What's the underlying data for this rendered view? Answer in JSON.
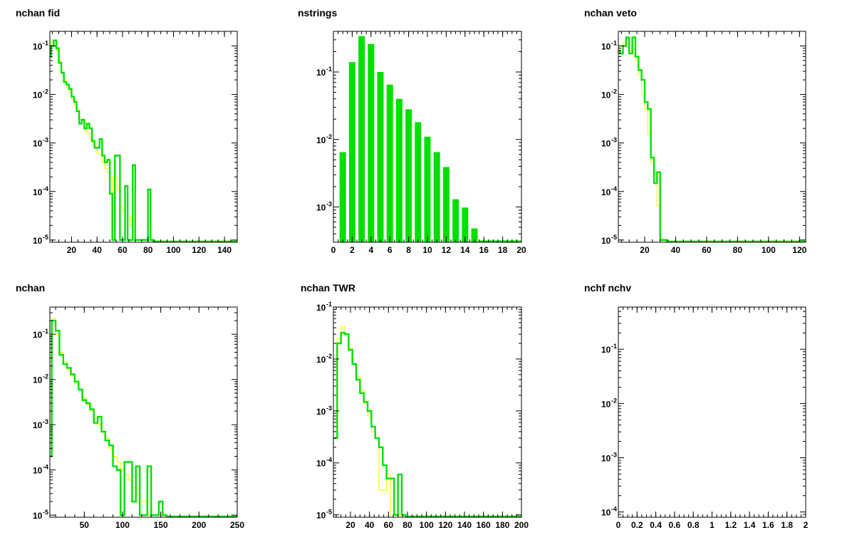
{
  "colors": {
    "data": "#00e000",
    "reference": "#ffff00",
    "frame": "#000000"
  },
  "chart_data": [
    {
      "id": "fid",
      "type": "histogram",
      "title": "nchan fid",
      "xlim": [
        3,
        150
      ],
      "ylim": [
        9e-06,
        0.2
      ],
      "yscale": "log",
      "xticks": [
        20,
        40,
        60,
        80,
        100,
        120,
        140
      ],
      "yticks": [
        {
          "exp": -1
        },
        {
          "exp": -2
        },
        {
          "exp": -3
        },
        {
          "exp": -4
        },
        {
          "exp": -5
        }
      ],
      "series": [
        {
          "role": "data",
          "x": [
            3,
            5,
            7,
            9,
            11,
            13,
            15,
            17,
            19,
            21,
            23,
            25,
            27,
            29,
            31,
            33,
            35,
            37,
            39,
            41,
            43,
            45,
            47,
            49,
            51,
            53,
            55,
            57,
            59,
            61,
            63,
            65,
            67,
            69,
            71,
            73,
            75,
            77,
            79,
            81,
            83
          ],
          "values": [
            0.06,
            0.1,
            0.13,
            0.09,
            0.045,
            0.028,
            0.018,
            0.016,
            0.013,
            0.009,
            0.007,
            0.0045,
            0.0025,
            0.003,
            0.002,
            0.0025,
            0.002,
            0.0011,
            0.0008,
            0.0008,
            0.0012,
            0.00055,
            0.0004,
            0.00045,
            9e-05,
            1e-05,
            0.00055,
            0.00055,
            1e-05,
            1e-05,
            0.00013,
            1e-05,
            1e-05,
            0.00035,
            1e-05,
            1e-05,
            1e-05,
            1e-05,
            1e-05,
            0.00011,
            1e-05
          ]
        },
        {
          "role": "reference",
          "x": [
            3,
            5,
            7,
            9,
            11,
            13,
            15,
            17,
            19,
            21,
            23,
            25,
            27,
            29,
            31,
            33,
            35,
            37,
            39,
            41,
            43,
            45,
            47,
            49,
            51,
            53,
            55,
            57,
            59,
            61,
            63,
            65,
            67,
            69,
            71,
            73,
            75,
            77,
            79,
            81,
            83
          ],
          "values": [
            0.075,
            0.12,
            0.1,
            0.08,
            0.05,
            0.03,
            0.02,
            0.014,
            0.011,
            0.008,
            0.006,
            0.005,
            0.003,
            0.0028,
            0.0018,
            0.0016,
            0.0012,
            0.001,
            0.0009,
            0.0006,
            0.0006,
            0.0004,
            0.0003,
            0.00025,
            0.0002,
            5e-05,
            0.0002,
            0.0001,
            5e-05,
            4e-05,
            6e-05,
            3e-05,
            2e-05,
            1e-05,
            1e-05,
            1e-05,
            1e-05,
            1e-05,
            1e-05,
            2e-05,
            1e-05
          ]
        }
      ]
    },
    {
      "id": "strings",
      "type": "bar",
      "title": "nstrings",
      "xlim": [
        0,
        20
      ],
      "ylim": [
        0.0003,
        0.4
      ],
      "yscale": "log",
      "xticks": [
        0,
        2,
        4,
        6,
        8,
        10,
        12,
        14,
        16,
        18,
        20
      ],
      "yticks": [
        {
          "exp": -1
        },
        {
          "exp": -2
        },
        {
          "exp": -3
        }
      ],
      "series": [
        {
          "role": "data",
          "x": [
            1,
            2,
            3,
            4,
            5,
            6,
            7,
            8,
            9,
            10,
            11,
            12,
            13,
            14,
            15
          ],
          "values": [
            0.0065,
            0.14,
            0.34,
            0.26,
            0.1,
            0.065,
            0.04,
            0.028,
            0.018,
            0.011,
            0.0065,
            0.0039,
            0.0013,
            0.00098,
            0.00048
          ]
        }
      ]
    },
    {
      "id": "veto",
      "type": "histogram",
      "title": "nchan veto",
      "xlim": [
        3,
        124
      ],
      "ylim": [
        9e-06,
        0.2
      ],
      "yscale": "log",
      "xticks": [
        20,
        40,
        60,
        80,
        100,
        120
      ],
      "yticks": [
        {
          "exp": -1
        },
        {
          "exp": -2
        },
        {
          "exp": -3
        },
        {
          "exp": -4
        },
        {
          "exp": -5
        }
      ],
      "series": [
        {
          "role": "data",
          "x": [
            3,
            5,
            7,
            9,
            11,
            13,
            15,
            17,
            19,
            21,
            23,
            25,
            27,
            29,
            31,
            33
          ],
          "values": [
            0.08,
            0.07,
            0.1,
            0.15,
            0.07,
            0.15,
            0.06,
            0.032,
            0.02,
            0.007,
            0.005,
            0.0005,
            0.00015,
            0.00025,
            1e-05,
            1e-05
          ]
        },
        {
          "role": "reference",
          "x": [
            3,
            5,
            7,
            9,
            11,
            13,
            15,
            17,
            19,
            21,
            23,
            25,
            27,
            29,
            31,
            33
          ],
          "values": [
            0.09,
            0.1,
            0.12,
            0.11,
            0.08,
            0.07,
            0.05,
            0.025,
            0.01,
            0.005,
            0.0015,
            0.0004,
            0.00025,
            5e-05,
            1e-05,
            1e-05
          ]
        }
      ]
    },
    {
      "id": "nchan",
      "type": "histogram",
      "title": "nchan",
      "xlim": [
        5,
        250
      ],
      "ylim": [
        9e-06,
        0.4
      ],
      "yscale": "log",
      "xticks": [
        50,
        100,
        150,
        200,
        250
      ],
      "yticks": [
        {
          "exp": -1
        },
        {
          "exp": -2
        },
        {
          "exp": -3
        },
        {
          "exp": -4
        },
        {
          "exp": -5
        }
      ],
      "series": [
        {
          "role": "data",
          "x": [
            5,
            10,
            15,
            20,
            25,
            30,
            35,
            40,
            45,
            50,
            55,
            60,
            65,
            70,
            75,
            80,
            85,
            90,
            95,
            100,
            105,
            110,
            115,
            120,
            125,
            130,
            135,
            140,
            145,
            150,
            155
          ],
          "values": [
            0.0002,
            0.2,
            0.12,
            0.035,
            0.022,
            0.018,
            0.013,
            0.009,
            0.006,
            0.0035,
            0.003,
            0.0022,
            0.0011,
            0.0015,
            0.0007,
            0.00045,
            0.00035,
            0.00012,
            0.0001,
            1e-05,
            0.00015,
            0.00015,
            2e-05,
            0.00012,
            1e-05,
            1e-05,
            0.00012,
            1e-05,
            1e-05,
            2e-05,
            1e-05
          ]
        },
        {
          "role": "reference",
          "x": [
            5,
            10,
            15,
            20,
            25,
            30,
            35,
            40,
            45,
            50,
            55,
            60,
            65,
            70,
            75,
            80,
            85,
            90,
            95,
            100,
            105,
            110,
            115,
            120,
            125,
            130,
            135,
            140,
            145,
            150,
            155
          ],
          "values": [
            0.0003,
            0.22,
            0.1,
            0.04,
            0.025,
            0.016,
            0.012,
            0.008,
            0.006,
            0.004,
            0.0028,
            0.002,
            0.0014,
            0.001,
            0.0007,
            0.0005,
            0.0003,
            0.0002,
            0.00015,
            0.0001,
            8e-05,
            6e-05,
            4e-05,
            3e-05,
            2e-05,
            2e-05,
            1e-05,
            1e-05,
            1e-05,
            1e-05,
            1e-05
          ]
        }
      ]
    },
    {
      "id": "twr",
      "type": "histogram",
      "title": "nchan TWR",
      "xlim": [
        2,
        200
      ],
      "ylim": [
        9e-06,
        0.1
      ],
      "yscale": "log",
      "xticks": [
        20,
        40,
        60,
        80,
        100,
        120,
        140,
        160,
        180,
        200
      ],
      "yticks": [
        {
          "exp": -1
        },
        {
          "exp": -2
        },
        {
          "exp": -3
        },
        {
          "exp": -4
        },
        {
          "exp": -5
        }
      ],
      "series": [
        {
          "role": "data",
          "x": [
            4,
            8,
            12,
            16,
            20,
            24,
            28,
            32,
            36,
            40,
            44,
            48,
            52,
            56,
            60,
            64,
            68,
            72,
            76
          ],
          "values": [
            0.0003,
            0.02,
            0.032,
            0.03,
            0.015,
            0.008,
            0.004,
            0.0022,
            0.0015,
            0.001,
            0.0005,
            0.0003,
            0.0002,
            9e-05,
            5e-05,
            5e-05,
            1e-05,
            6e-05,
            1e-05
          ]
        },
        {
          "role": "reference",
          "x": [
            4,
            8,
            12,
            16,
            20,
            24,
            28,
            32,
            36,
            40,
            44,
            48,
            52,
            56,
            60,
            64,
            68,
            72,
            76
          ],
          "values": [
            0.0004,
            0.025,
            0.042,
            0.03,
            0.016,
            0.008,
            0.0045,
            0.0025,
            0.0014,
            0.0008,
            0.0004,
            0.0003,
            3e-05,
            3e-05,
            6e-05,
            1e-05,
            1e-05,
            1e-05,
            1e-05
          ]
        }
      ]
    },
    {
      "id": "hfhv",
      "type": "histogram",
      "title": "nchf nchv",
      "xlim": [
        0,
        2
      ],
      "ylim": [
        8e-05,
        0.6
      ],
      "yscale": "log",
      "xticks": [
        0,
        0.2,
        0.4,
        0.6,
        0.8,
        1,
        1.2,
        1.4,
        1.6,
        1.8,
        2
      ],
      "yticks": [
        {
          "exp": -1
        },
        {
          "exp": -2
        },
        {
          "exp": -3
        },
        {
          "exp": -4
        }
      ],
      "series": []
    }
  ]
}
